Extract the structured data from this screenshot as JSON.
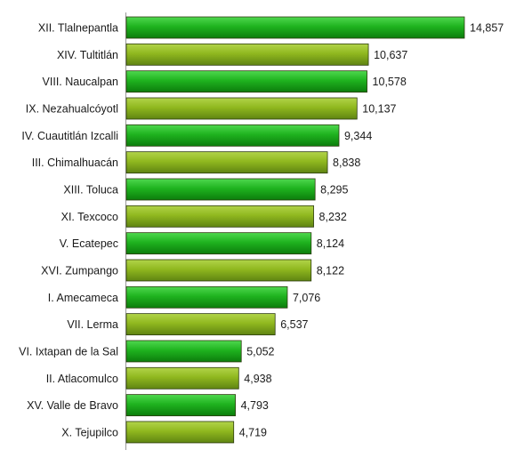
{
  "chart_data": {
    "type": "bar",
    "orientation": "horizontal",
    "categories": [
      "XII. Tlalnepantla",
      "XIV. Tultitlán",
      "VIII. Naucalpan",
      "IX. Nezahualcóyotl",
      "IV. Cuautitlán Izcalli",
      "III. Chimalhuacán",
      "XIII. Toluca",
      "XI. Texcoco",
      "V. Ecatepec",
      "XVI. Zumpango",
      "I. Amecameca",
      "VII. Lerma",
      "VI. Ixtapan de la Sal",
      "II. Atlacomulco",
      "XV. Valle de Bravo",
      "X. Tejupilco"
    ],
    "values": [
      14857,
      10637,
      10578,
      10137,
      9344,
      8838,
      8295,
      8232,
      8124,
      8122,
      7076,
      6537,
      5052,
      4938,
      4793,
      4719
    ],
    "value_labels": [
      "14,857",
      "10,637",
      "10,578",
      "10,137",
      "9,344",
      "8,838",
      "8,295",
      "8,232",
      "8,124",
      "8,122",
      "7,076",
      "6,537",
      "5,052",
      "4,938",
      "4,793",
      "4,719"
    ],
    "xlim": [
      0,
      15000
    ],
    "grid": false,
    "colors": {
      "bright_green": "#1aa81a",
      "olive_green": "#8db51e",
      "bar_border": "#2e3d10"
    }
  }
}
